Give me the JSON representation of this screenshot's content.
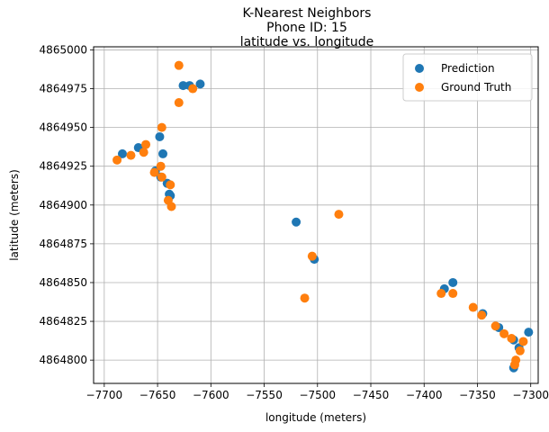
{
  "chart_data": {
    "type": "scatter",
    "suptitle_lines": [
      "K-Nearest Neighbors",
      "Phone ID: 15"
    ],
    "title": "latitude vs. longitude",
    "xlabel": "longitude (meters)",
    "ylabel": "latitude (meters)",
    "xlim": [
      -7710,
      -7293
    ],
    "ylim": [
      4864785,
      4865002
    ],
    "xticks": [
      -7700,
      -7650,
      -7600,
      -7550,
      -7500,
      -7450,
      -7400,
      -7350,
      -7300
    ],
    "yticks": [
      4864800,
      4864825,
      4864850,
      4864875,
      4864900,
      4864925,
      4864950,
      4864975,
      4865000
    ],
    "xtick_labels": [
      "−7700",
      "−7650",
      "−7600",
      "−7550",
      "−7500",
      "−7450",
      "−7400",
      "−7350",
      "−7300"
    ],
    "ytick_labels": [
      "4864800",
      "4864825",
      "4864850",
      "4864875",
      "4864900",
      "4864925",
      "4864950",
      "4864975",
      "4865000"
    ],
    "grid": true,
    "legend_position": "top-right",
    "series": [
      {
        "name": "Prediction",
        "color": "#1f77b4",
        "points": [
          {
            "x": -7683,
            "y": 4864933
          },
          {
            "x": -7668,
            "y": 4864937
          },
          {
            "x": -7648,
            "y": 4864944
          },
          {
            "x": -7645,
            "y": 4864933
          },
          {
            "x": -7652,
            "y": 4864922
          },
          {
            "x": -7647,
            "y": 4864918
          },
          {
            "x": -7641,
            "y": 4864914
          },
          {
            "x": -7639,
            "y": 4864907
          },
          {
            "x": -7638,
            "y": 4864906
          },
          {
            "x": -7626,
            "y": 4864977
          },
          {
            "x": -7620,
            "y": 4864977
          },
          {
            "x": -7610,
            "y": 4864978
          },
          {
            "x": -7520,
            "y": 4864889
          },
          {
            "x": -7503,
            "y": 4864865
          },
          {
            "x": -7381,
            "y": 4864846
          },
          {
            "x": -7373,
            "y": 4864850
          },
          {
            "x": -7345,
            "y": 4864830
          },
          {
            "x": -7330,
            "y": 4864821
          },
          {
            "x": -7316,
            "y": 4864813
          },
          {
            "x": -7311,
            "y": 4864808
          },
          {
            "x": -7302,
            "y": 4864818
          },
          {
            "x": -7316,
            "y": 4864795
          }
        ]
      },
      {
        "name": "Ground Truth",
        "color": "#ff7f0e",
        "points": [
          {
            "x": -7688,
            "y": 4864929
          },
          {
            "x": -7675,
            "y": 4864932
          },
          {
            "x": -7663,
            "y": 4864934
          },
          {
            "x": -7661,
            "y": 4864939
          },
          {
            "x": -7647,
            "y": 4864925
          },
          {
            "x": -7646,
            "y": 4864950
          },
          {
            "x": -7653,
            "y": 4864921
          },
          {
            "x": -7646,
            "y": 4864918
          },
          {
            "x": -7638,
            "y": 4864913
          },
          {
            "x": -7640,
            "y": 4864903
          },
          {
            "x": -7637,
            "y": 4864899
          },
          {
            "x": -7630,
            "y": 4864990
          },
          {
            "x": -7630,
            "y": 4864966
          },
          {
            "x": -7617,
            "y": 4864975
          },
          {
            "x": -7480,
            "y": 4864894
          },
          {
            "x": -7505,
            "y": 4864867
          },
          {
            "x": -7512,
            "y": 4864840
          },
          {
            "x": -7384,
            "y": 4864843
          },
          {
            "x": -7373,
            "y": 4864843
          },
          {
            "x": -7354,
            "y": 4864834
          },
          {
            "x": -7346,
            "y": 4864829
          },
          {
            "x": -7333,
            "y": 4864822
          },
          {
            "x": -7325,
            "y": 4864817
          },
          {
            "x": -7318,
            "y": 4864814
          },
          {
            "x": -7307,
            "y": 4864812
          },
          {
            "x": -7310,
            "y": 4864806
          },
          {
            "x": -7314,
            "y": 4864800
          },
          {
            "x": -7315,
            "y": 4864797
          }
        ]
      }
    ]
  }
}
